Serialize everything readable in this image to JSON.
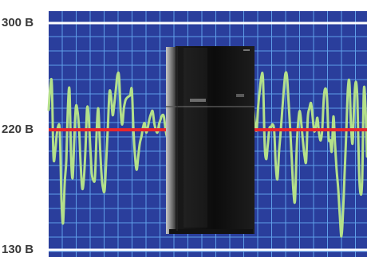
{
  "chart_data": {
    "type": "line",
    "title": "",
    "xlabel": "",
    "ylabel": "",
    "ylim": [
      130,
      300
    ],
    "ticks": [
      {
        "value": 300,
        "label": "300 В"
      },
      {
        "value": 220,
        "label": "220 В"
      },
      {
        "value": 130,
        "label": "130 В"
      }
    ],
    "grid": true,
    "reference_line": {
      "value": 220,
      "color": "#e8262c"
    },
    "x": [
      0,
      1,
      2,
      3,
      4,
      5,
      6,
      7,
      8,
      9,
      10,
      11,
      12,
      13,
      14,
      15,
      16,
      17,
      18,
      19,
      20,
      21,
      22,
      23,
      24,
      25,
      26,
      27,
      28,
      29,
      30,
      31,
      32,
      33,
      34,
      35,
      36,
      37,
      38,
      39,
      40,
      41,
      42,
      43,
      44,
      45,
      46,
      47,
      48,
      49,
      50,
      51,
      52,
      53,
      54,
      55,
      56,
      57,
      58,
      59,
      60,
      61,
      62,
      63,
      64,
      65,
      66,
      67,
      68,
      69,
      70,
      71,
      72,
      73,
      74,
      75,
      76,
      77,
      78,
      79,
      80,
      81,
      82,
      83,
      84,
      85,
      86,
      87,
      88,
      89,
      90,
      91,
      92,
      93,
      94,
      95,
      96,
      97,
      98,
      99,
      100,
      101,
      102,
      103,
      104,
      105,
      106,
      107,
      108,
      109,
      110,
      111,
      112,
      113,
      114,
      115,
      116,
      117,
      118,
      119,
      120,
      121,
      122,
      123,
      124,
      125,
      126,
      127,
      128,
      129,
      130,
      131,
      132,
      133,
      134,
      135,
      136,
      137,
      138,
      139,
      140,
      141,
      142,
      143,
      144,
      145,
      146,
      147,
      148,
      149,
      150,
      151,
      152,
      153,
      154,
      155,
      156,
      157,
      158,
      159,
      160,
      161,
      162,
      163,
      164,
      165,
      166,
      167,
      168,
      169,
      170,
      171,
      172,
      173,
      174,
      175,
      176,
      177,
      178,
      179,
      180,
      181,
      182,
      183,
      184,
      185,
      186,
      187,
      188,
      189,
      190,
      191,
      192,
      193,
      194,
      195,
      196,
      197,
      198,
      199
    ],
    "series": [
      {
        "color": "#b4e08a",
        "values": [
          235,
          252,
          254,
          200,
          203,
          216,
          223,
          218,
          168,
          150,
          180,
          197,
          236,
          250,
          200,
          184,
          213,
          237,
          234,
          221,
          194,
          176,
          183,
          205,
          236,
          230,
          207,
          187,
          182,
          185,
          219,
          236,
          210,
          187,
          176,
          175,
          198,
          222,
          248,
          245,
          231,
          239,
          250,
          261,
          260,
          234,
          224,
          236,
          242,
          244,
          245,
          246,
          250,
          220,
          200,
          190,
          200,
          210,
          215,
          222,
          225,
          218,
          222,
          228,
          232,
          234,
          225,
          220,
          218,
          224,
          228,
          231,
          230,
          221,
          215,
          221,
          227,
          233,
          230,
          219,
          212,
          218,
          226,
          230,
          228,
          222,
          214,
          212,
          218,
          222,
          226,
          230,
          228,
          218,
          210,
          216,
          224,
          229,
          226,
          216,
          211,
          217,
          225,
          230,
          227,
          222,
          215,
          210,
          214,
          220,
          225,
          228,
          226,
          221,
          228,
          231,
          232,
          231,
          233,
          230,
          226,
          229,
          232,
          234,
          232,
          232,
          240,
          246,
          235,
          224,
          220,
          238,
          250,
          260,
          258,
          210,
          198,
          209,
          221,
          222,
          224,
          219,
          193,
          183,
          203,
          218,
          234,
          250,
          262,
          260,
          240,
          220,
          197,
          174,
          167,
          204,
          226,
          234,
          224,
          211,
          200,
          197,
          229,
          236,
          240,
          230,
          219,
          222,
          229,
          218,
          212,
          220,
          244,
          251,
          244,
          214,
          212,
          204,
          230,
          210,
          190,
          176,
          156,
          140,
          158,
          187,
          216,
          249,
          256,
          224,
          210,
          241,
          256,
          242,
          190,
          172,
          183,
          249,
          238,
          200
        ]
      }
    ]
  },
  "colors": {
    "plot_background": "#2a3e9c",
    "grid": "#5f9fe8",
    "frame_line": "#ffffff",
    "label": "#3a3a3a"
  },
  "overlay_image": "refrigerator-photo"
}
